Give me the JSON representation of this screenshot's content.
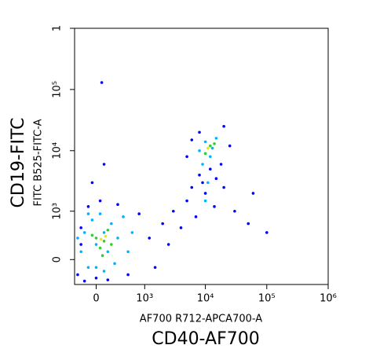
{
  "chart_data": {
    "type": "scatter",
    "x_label": "AF700 R712-APCA700-A",
    "x_title": "CD40-AF700",
    "y_label": "FITC B525-FITC-A",
    "y_title": "CD19-FITC",
    "x_scale": "biexponential",
    "y_scale": "biexponential",
    "xlim": [
      -300,
      1000000
    ],
    "ylim": [
      -360,
      1000000
    ],
    "xticks": [
      0,
      {
        "value": 1000,
        "label": "10³"
      },
      {
        "value": 10000,
        "label": "10⁴"
      },
      {
        "value": 100000,
        "label": "10⁵"
      },
      {
        "value": 1000000,
        "label": "10⁶"
      }
    ],
    "yticks": [
      0,
      {
        "value": 1000,
        "label": "10³"
      },
      {
        "value": 10000,
        "label": "10⁴"
      },
      {
        "value": 100000,
        "label": "10⁵"
      },
      {
        "value": 1000000,
        "label": "1"
      }
    ],
    "series": [
      {
        "color": "#0000ff",
        "x": [
          -250,
          -200,
          -150,
          -100,
          0,
          50,
          150,
          300,
          500,
          800,
          1200,
          1500,
          2000,
          2500,
          3000,
          4000,
          5000,
          6000,
          7000,
          8000,
          9000,
          10000,
          12000,
          15000,
          14000,
          20000,
          30000,
          50000,
          8000,
          6000,
          20000,
          25000,
          5000,
          18000,
          70,
          100,
          -50,
          -200,
          60000,
          100000
        ],
        "y": [
          -200,
          500,
          -300,
          1200,
          -250,
          1500,
          -280,
          1300,
          -200,
          900,
          300,
          -100,
          600,
          200,
          1000,
          500,
          1500,
          2500,
          800,
          4000,
          3000,
          2000,
          5000,
          3500,
          1200,
          2500,
          1000,
          600,
          20000,
          15000,
          25000,
          12000,
          8000,
          6000,
          130000,
          6000,
          3000,
          200,
          2000,
          400
        ]
      },
      {
        "color": "#00b4ff",
        "x": [
          -200,
          -150,
          -100,
          -50,
          0,
          0,
          50,
          100,
          100,
          150,
          200,
          250,
          300,
          400,
          500,
          600,
          -100,
          -250,
          8000,
          10000,
          12000,
          15000,
          9000,
          13000,
          11000,
          10000
        ],
        "y": [
          100,
          400,
          -100,
          700,
          200,
          -100,
          900,
          400,
          -150,
          100,
          600,
          -50,
          300,
          800,
          100,
          400,
          900,
          300,
          10000,
          14000,
          8000,
          16000,
          6000,
          11000,
          3000,
          1500
        ]
      },
      {
        "color": "#33cc33",
        "x": [
          0,
          50,
          100,
          -50,
          150,
          80,
          200,
          12000,
          10000,
          14000
        ],
        "y": [
          300,
          150,
          250,
          350,
          450,
          50,
          200,
          12000,
          9000,
          13000
        ]
      },
      {
        "color": "#e8e800",
        "x": [
          60,
          120,
          11000
        ],
        "y": [
          280,
          330,
          11000
        ]
      }
    ]
  }
}
